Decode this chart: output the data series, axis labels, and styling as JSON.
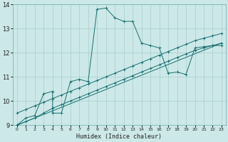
{
  "xlabel": "Humidex (Indice chaleur)",
  "bg_color": "#cce8e8",
  "grid_color": "#aacccc",
  "line_color": "#1a7070",
  "xlim": [
    -0.5,
    23.5
  ],
  "ylim": [
    9,
    14
  ],
  "yticks": [
    9,
    10,
    11,
    12,
    13,
    14
  ],
  "xticks": [
    0,
    1,
    2,
    3,
    4,
    5,
    6,
    7,
    8,
    9,
    10,
    11,
    12,
    13,
    14,
    15,
    16,
    17,
    18,
    19,
    20,
    21,
    22,
    23
  ],
  "series": [
    {
      "x": [
        0,
        1,
        2,
        3,
        4,
        4,
        5,
        6,
        7,
        8,
        9,
        10,
        11,
        12,
        13,
        14,
        15,
        16,
        17,
        18,
        19,
        20,
        21,
        22,
        23
      ],
      "y": [
        9.0,
        9.3,
        9.4,
        10.3,
        10.4,
        9.5,
        9.5,
        10.8,
        10.9,
        10.8,
        13.8,
        13.85,
        13.45,
        13.3,
        13.3,
        12.4,
        12.3,
        12.2,
        11.15,
        11.2,
        11.1,
        12.2,
        12.25,
        12.3,
        12.3
      ],
      "marker": true
    },
    {
      "x": [
        0,
        1,
        2,
        3,
        4,
        5,
        6,
        7,
        8,
        9,
        10,
        11,
        12,
        13,
        14,
        15,
        16,
        17,
        18,
        19,
        20,
        21,
        22,
        23
      ],
      "y": [
        9.5,
        9.65,
        9.8,
        9.95,
        10.1,
        10.25,
        10.4,
        10.55,
        10.7,
        10.85,
        11.0,
        11.15,
        11.3,
        11.45,
        11.6,
        11.75,
        11.9,
        12.05,
        12.2,
        12.35,
        12.5,
        12.6,
        12.7,
        12.8
      ],
      "marker": true
    },
    {
      "x": [
        0,
        1,
        2,
        3,
        4,
        5,
        6,
        7,
        8,
        9,
        10,
        11,
        12,
        13,
        14,
        15,
        16,
        17,
        18,
        19,
        20,
        21,
        22,
        23
      ],
      "y": [
        9.0,
        9.15,
        9.3,
        9.5,
        9.7,
        9.85,
        10.0,
        10.15,
        10.3,
        10.45,
        10.6,
        10.75,
        10.9,
        11.05,
        11.2,
        11.35,
        11.5,
        11.65,
        11.8,
        11.95,
        12.1,
        12.2,
        12.3,
        12.4
      ],
      "marker": true
    },
    {
      "x": [
        0,
        23
      ],
      "y": [
        9.0,
        12.4
      ],
      "marker": false
    }
  ]
}
